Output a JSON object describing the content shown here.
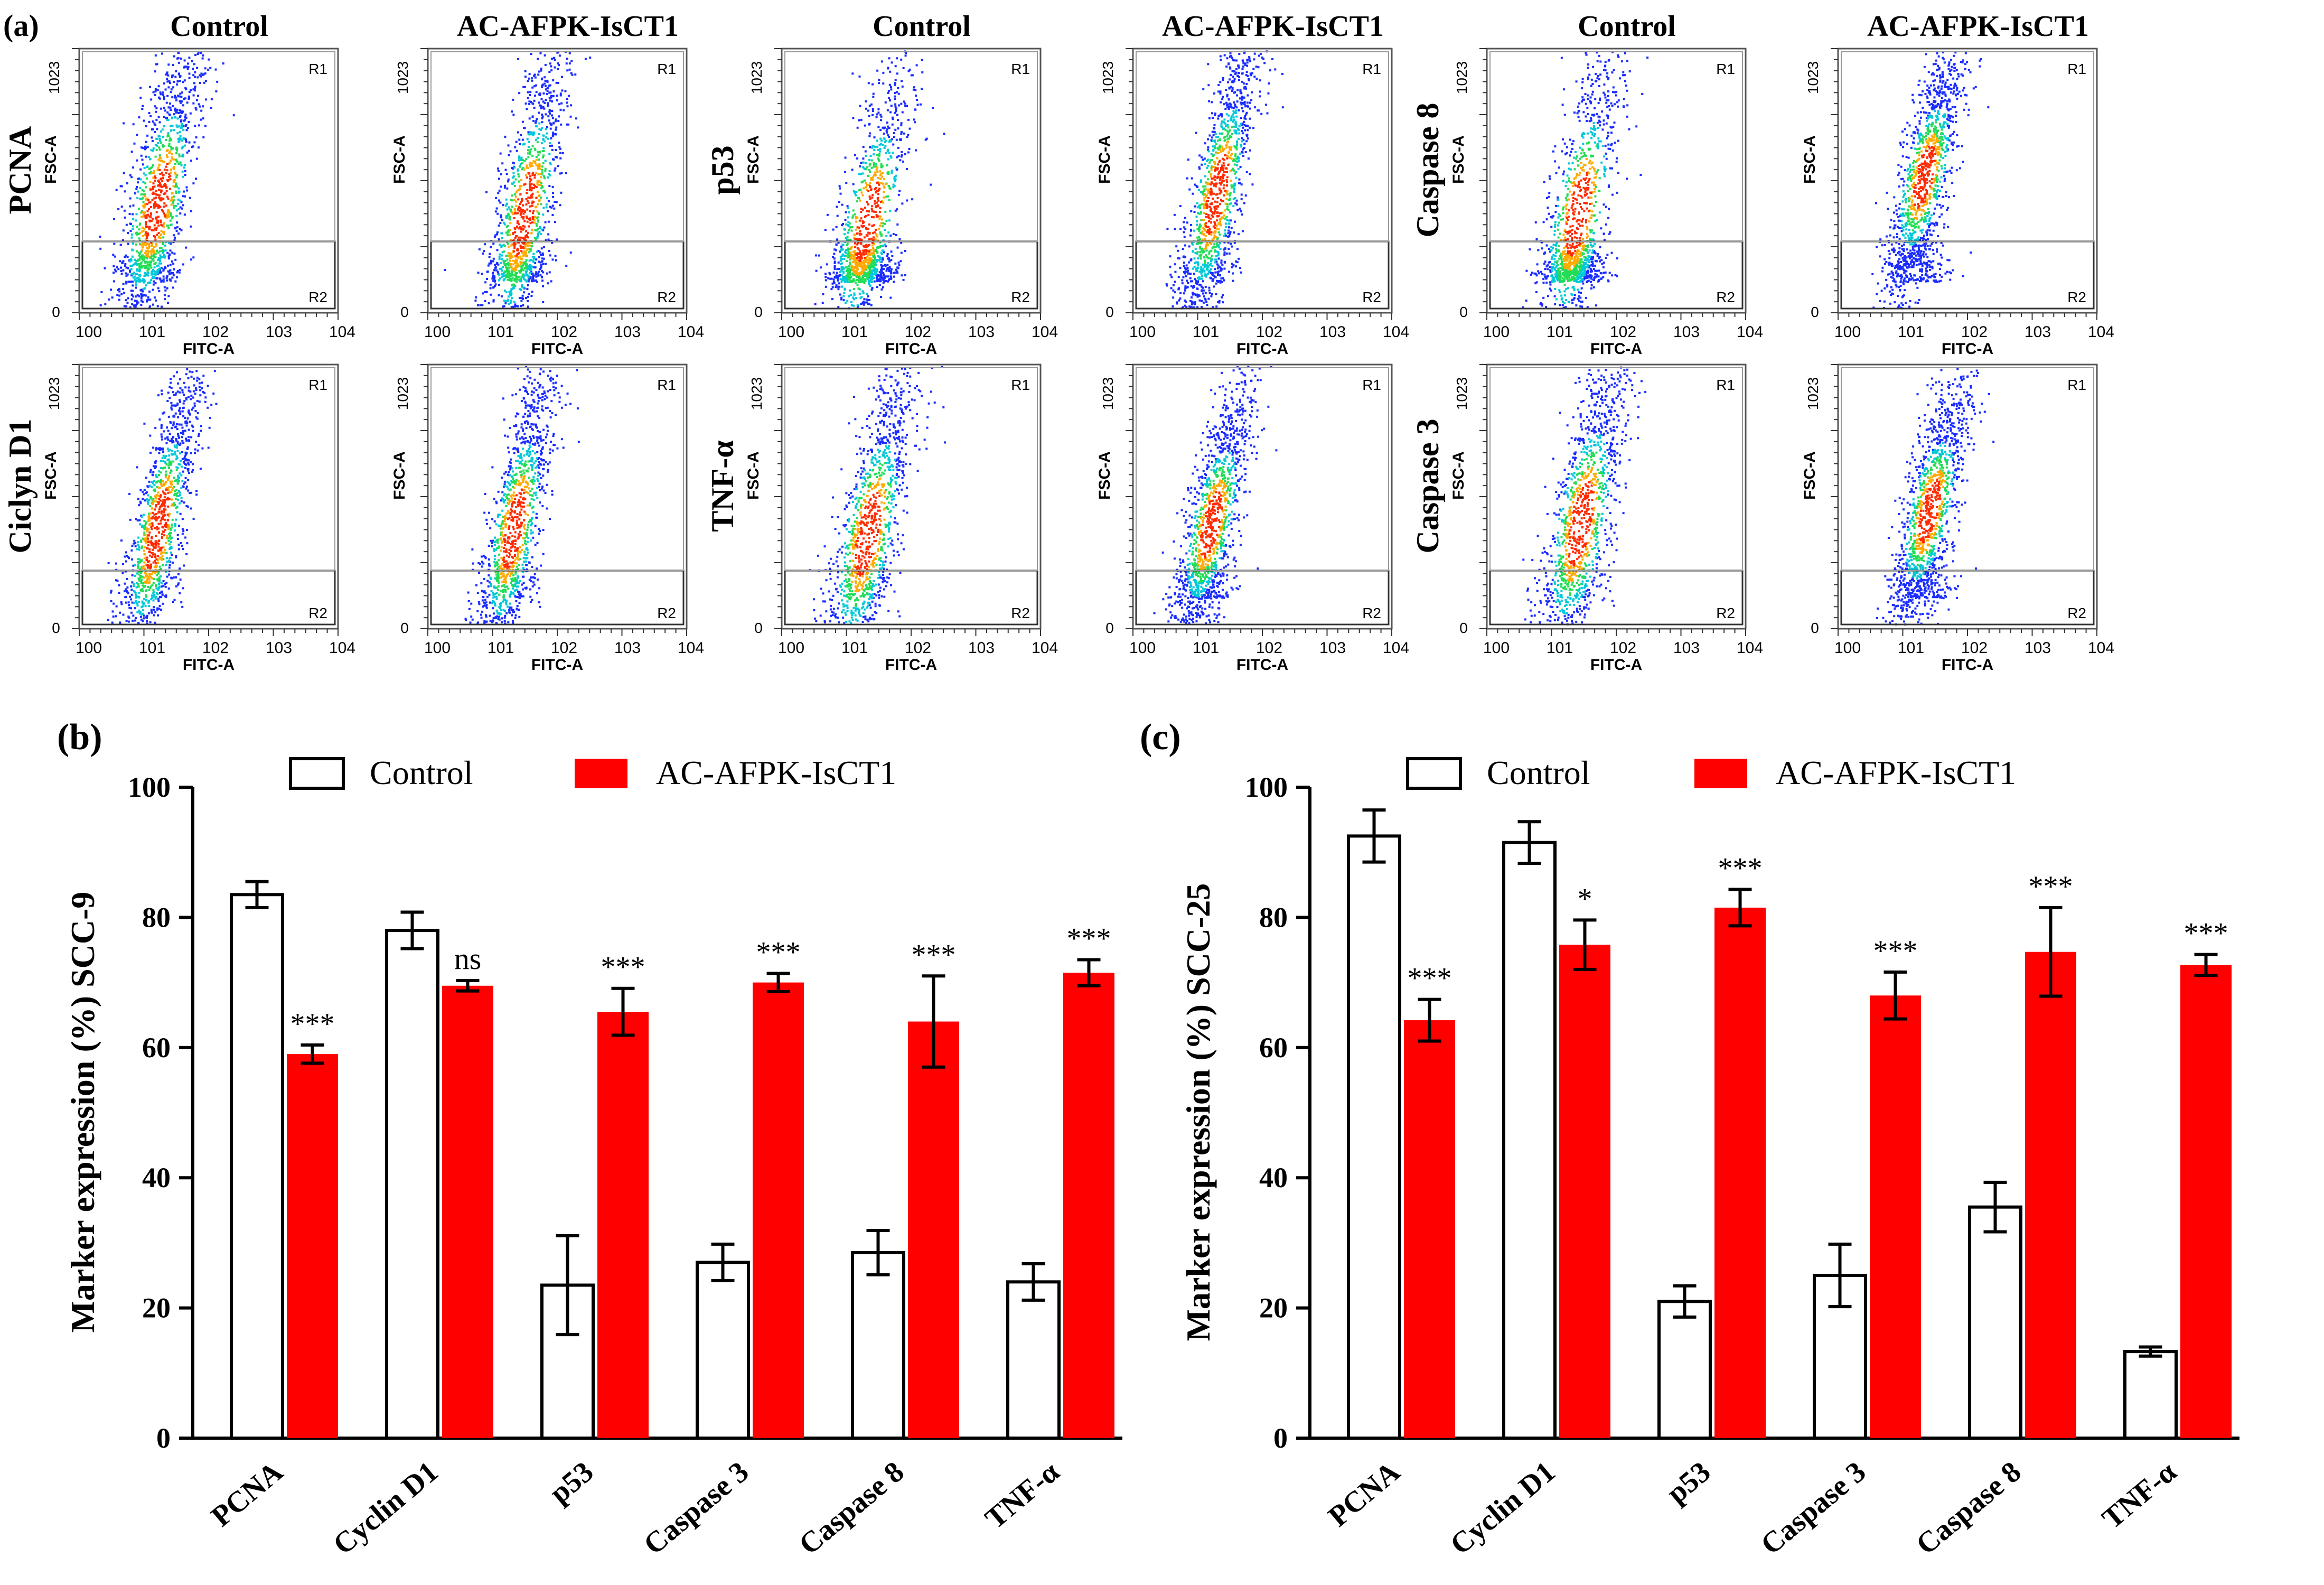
{
  "figure": {
    "panel_a_label": "(a)",
    "panel_b_label": "(b)",
    "panel_c_label": "(c)"
  },
  "flow": {
    "x_axis_label": "FITC-A",
    "y_axis_label": "FSC-A",
    "x_tick_labels": [
      "100",
      "101",
      "102",
      "103",
      "104"
    ],
    "y_tick_labels": [
      "0",
      "1023"
    ],
    "region_labels": [
      "R1",
      "R2"
    ],
    "column_titles": [
      "Control",
      "AC-AFPK-IsCT1",
      "Control",
      "AC-AFPK-IsCT1",
      "Control",
      "AC-AFPK-IsCT1"
    ],
    "row_markers": [
      [
        "PCNA",
        "p53",
        "Caspase 8"
      ],
      [
        "Ciclyn D1",
        "TNF-α",
        "Caspase 3"
      ]
    ]
  },
  "colors": {
    "control_fill": "#ffffff",
    "treated_fill": "#ff0000",
    "axis": "#000000",
    "density_low": "#1a2cff",
    "density_mid": "#22dd55",
    "density_high": "#ff2a00"
  },
  "chart_data": [
    {
      "type": "bar",
      "panel": "(b)",
      "ylabel": "Marker expression (%) SCC-9",
      "ylim": [
        0,
        100
      ],
      "yticks": [
        "0",
        "20",
        "40",
        "60",
        "80",
        "100"
      ],
      "categories": [
        "PCNA",
        "Cyclin D1",
        "p53",
        "Caspase 3",
        "Caspase 8",
        "TNF-α"
      ],
      "series": [
        {
          "name": "Control",
          "values": [
            83.5,
            78,
            23.5,
            27,
            28.5,
            24
          ],
          "errors": [
            2,
            2.8,
            7.6,
            2.8,
            3.4,
            2.8
          ]
        },
        {
          "name": "AC-AFPK-IsCT1",
          "values": [
            59,
            69.5,
            65.5,
            70,
            64,
            71.5
          ],
          "errors": [
            1.4,
            0.8,
            3.6,
            1.4,
            7,
            2
          ]
        }
      ],
      "significance": [
        "***",
        "ns",
        "***",
        "***",
        "***",
        "***"
      ]
    },
    {
      "type": "bar",
      "panel": "(c)",
      "ylabel": "Marker expression (%) SCC-25",
      "ylim": [
        0,
        100
      ],
      "yticks": [
        "0",
        "20",
        "40",
        "60",
        "80",
        "100"
      ],
      "categories": [
        "PCNA",
        "Cyclin D1",
        "p53",
        "Caspase 3",
        "Caspase 8",
        "TNF-α"
      ],
      "series": [
        {
          "name": "Control",
          "values": [
            92.5,
            91.5,
            21,
            25,
            35.5,
            13.3
          ],
          "errors": [
            4,
            3.2,
            2.4,
            4.8,
            3.8,
            0.7
          ]
        },
        {
          "name": "AC-AFPK-IsCT1",
          "values": [
            64.2,
            75.8,
            81.5,
            68,
            74.7,
            72.7
          ],
          "errors": [
            3.2,
            3.8,
            2.8,
            3.6,
            6.8,
            1.6
          ]
        }
      ],
      "significance": [
        "***",
        "*",
        "***",
        "***",
        "***",
        "***"
      ]
    }
  ]
}
